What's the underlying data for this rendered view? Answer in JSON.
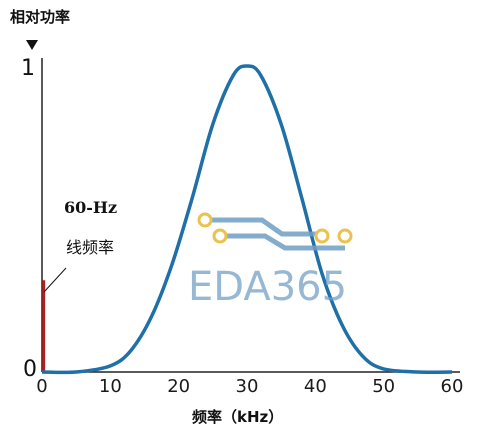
{
  "chart_data": {
    "type": "line",
    "title": "",
    "ylabel": "相对功率",
    "xlabel": "频率（kHz）",
    "xlim": [
      0,
      60
    ],
    "ylim": [
      0,
      1
    ],
    "x_ticks": [
      "0",
      "10",
      "20",
      "30",
      "40",
      "50",
      "60"
    ],
    "y_ticks": [
      "0",
      "1"
    ],
    "series": [
      {
        "type": "line",
        "color": "#1f6fa8",
        "x": [
          0,
          5,
          10,
          13,
          16,
          19,
          22,
          25,
          28,
          30,
          32,
          35,
          38,
          41,
          44,
          47,
          50,
          55,
          60
        ],
        "y": [
          0.0,
          0.0,
          0.02,
          0.07,
          0.18,
          0.35,
          0.57,
          0.81,
          0.97,
          1.0,
          0.97,
          0.81,
          0.57,
          0.32,
          0.15,
          0.05,
          0.01,
          0.0,
          0.0
        ]
      },
      {
        "type": "spike",
        "color": "#b02020",
        "x": [
          0.1,
          0.1
        ],
        "y": [
          0.0,
          0.3
        ]
      }
    ],
    "annotations": [
      {
        "text": "60-Hz"
      },
      {
        "text": "线频率"
      }
    ]
  },
  "watermark": {
    "text": "EDA365",
    "color": "#6f9ec4",
    "trace_color": "#6f9ec4",
    "pad_color": "#e8b830"
  }
}
